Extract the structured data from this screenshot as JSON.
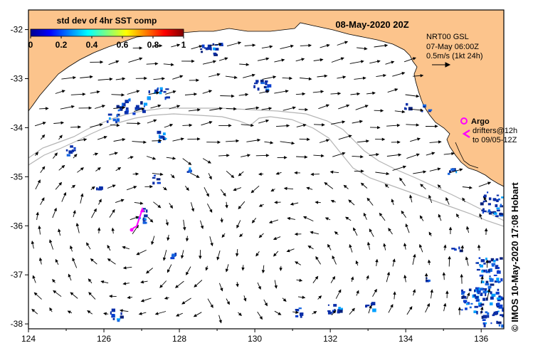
{
  "map": {
    "date_title": "08-May-2020 20Z",
    "colorbar": {
      "title": "std dev of 4hr SST comp",
      "ticks": [
        "0",
        "0.2",
        "0.4",
        "0.6",
        "0.8",
        "1"
      ],
      "range": [
        0,
        1
      ],
      "colormap": "jet"
    },
    "current_info": {
      "line1": "NRT00 GSL",
      "line2": "07-May 06:00Z",
      "line3": "0.5m/s (1kt 24h)"
    },
    "legend": {
      "argo_label": "Argo",
      "drifters_label": "drifters@12h",
      "drifters_to": "to 09/05-12Z",
      "argo_color": "#ff00ff",
      "drifter_color": "#ff00ff"
    },
    "axes": {
      "x_ticks": [
        "124",
        "126",
        "128",
        "130",
        "132",
        "134",
        "136"
      ],
      "y_ticks": [
        "-32",
        "-33",
        "-34",
        "-35",
        "-36",
        "-37",
        "-38"
      ],
      "lon_range": [
        124,
        136.6
      ],
      "lat_range": [
        -38.1,
        -31.6
      ]
    },
    "credit": "© IMOS 10-May-2020 17:08 Hobart",
    "colors": {
      "land": "#fcc48c",
      "sea": "#ffffff",
      "bathymetry": "#b4b4b4",
      "sst_patch": "#0a2ea8",
      "arrow": "#000000"
    }
  }
}
